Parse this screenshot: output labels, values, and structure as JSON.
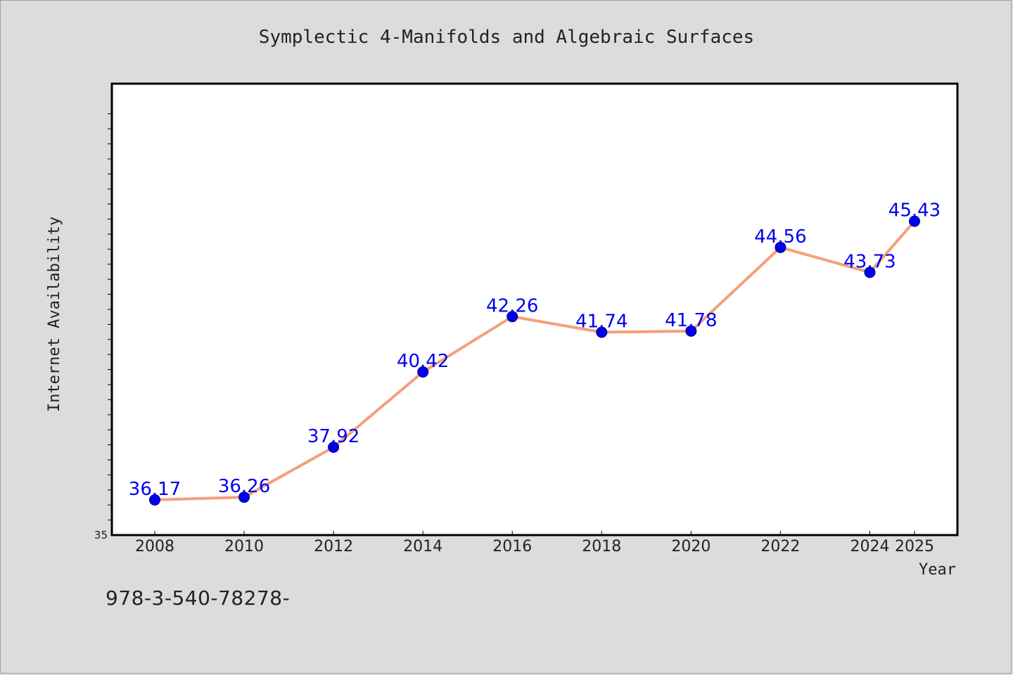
{
  "footer_code": "978-3-540-78278-",
  "chart_data": {
    "type": "line",
    "title": "Symplectic 4-Manifolds and Algebraic Surfaces",
    "xlabel": "Year",
    "ylabel": "Internet Availability",
    "categories": [
      "2008",
      "2010",
      "2012",
      "2014",
      "2016",
      "2018",
      "2020",
      "2022",
      "2024",
      "2025"
    ],
    "series": [
      {
        "values": [
          36.17,
          36.26,
          37.92,
          40.42,
          42.26,
          41.74,
          41.78,
          44.56,
          43.73,
          45.43
        ],
        "data_labels": [
          "36.17",
          "36.26",
          "37.92",
          "40.42",
          "42.26",
          "41.74",
          "41.78",
          "44.56",
          "43.73",
          "45.43"
        ],
        "line_color": "#f4a07a",
        "marker_color": "#0000ee",
        "label_color": "#0000ee"
      }
    ],
    "y_tick_labels": [
      "35"
    ],
    "ylim": [
      35,
      50
    ],
    "grid": false,
    "legend": "none"
  }
}
